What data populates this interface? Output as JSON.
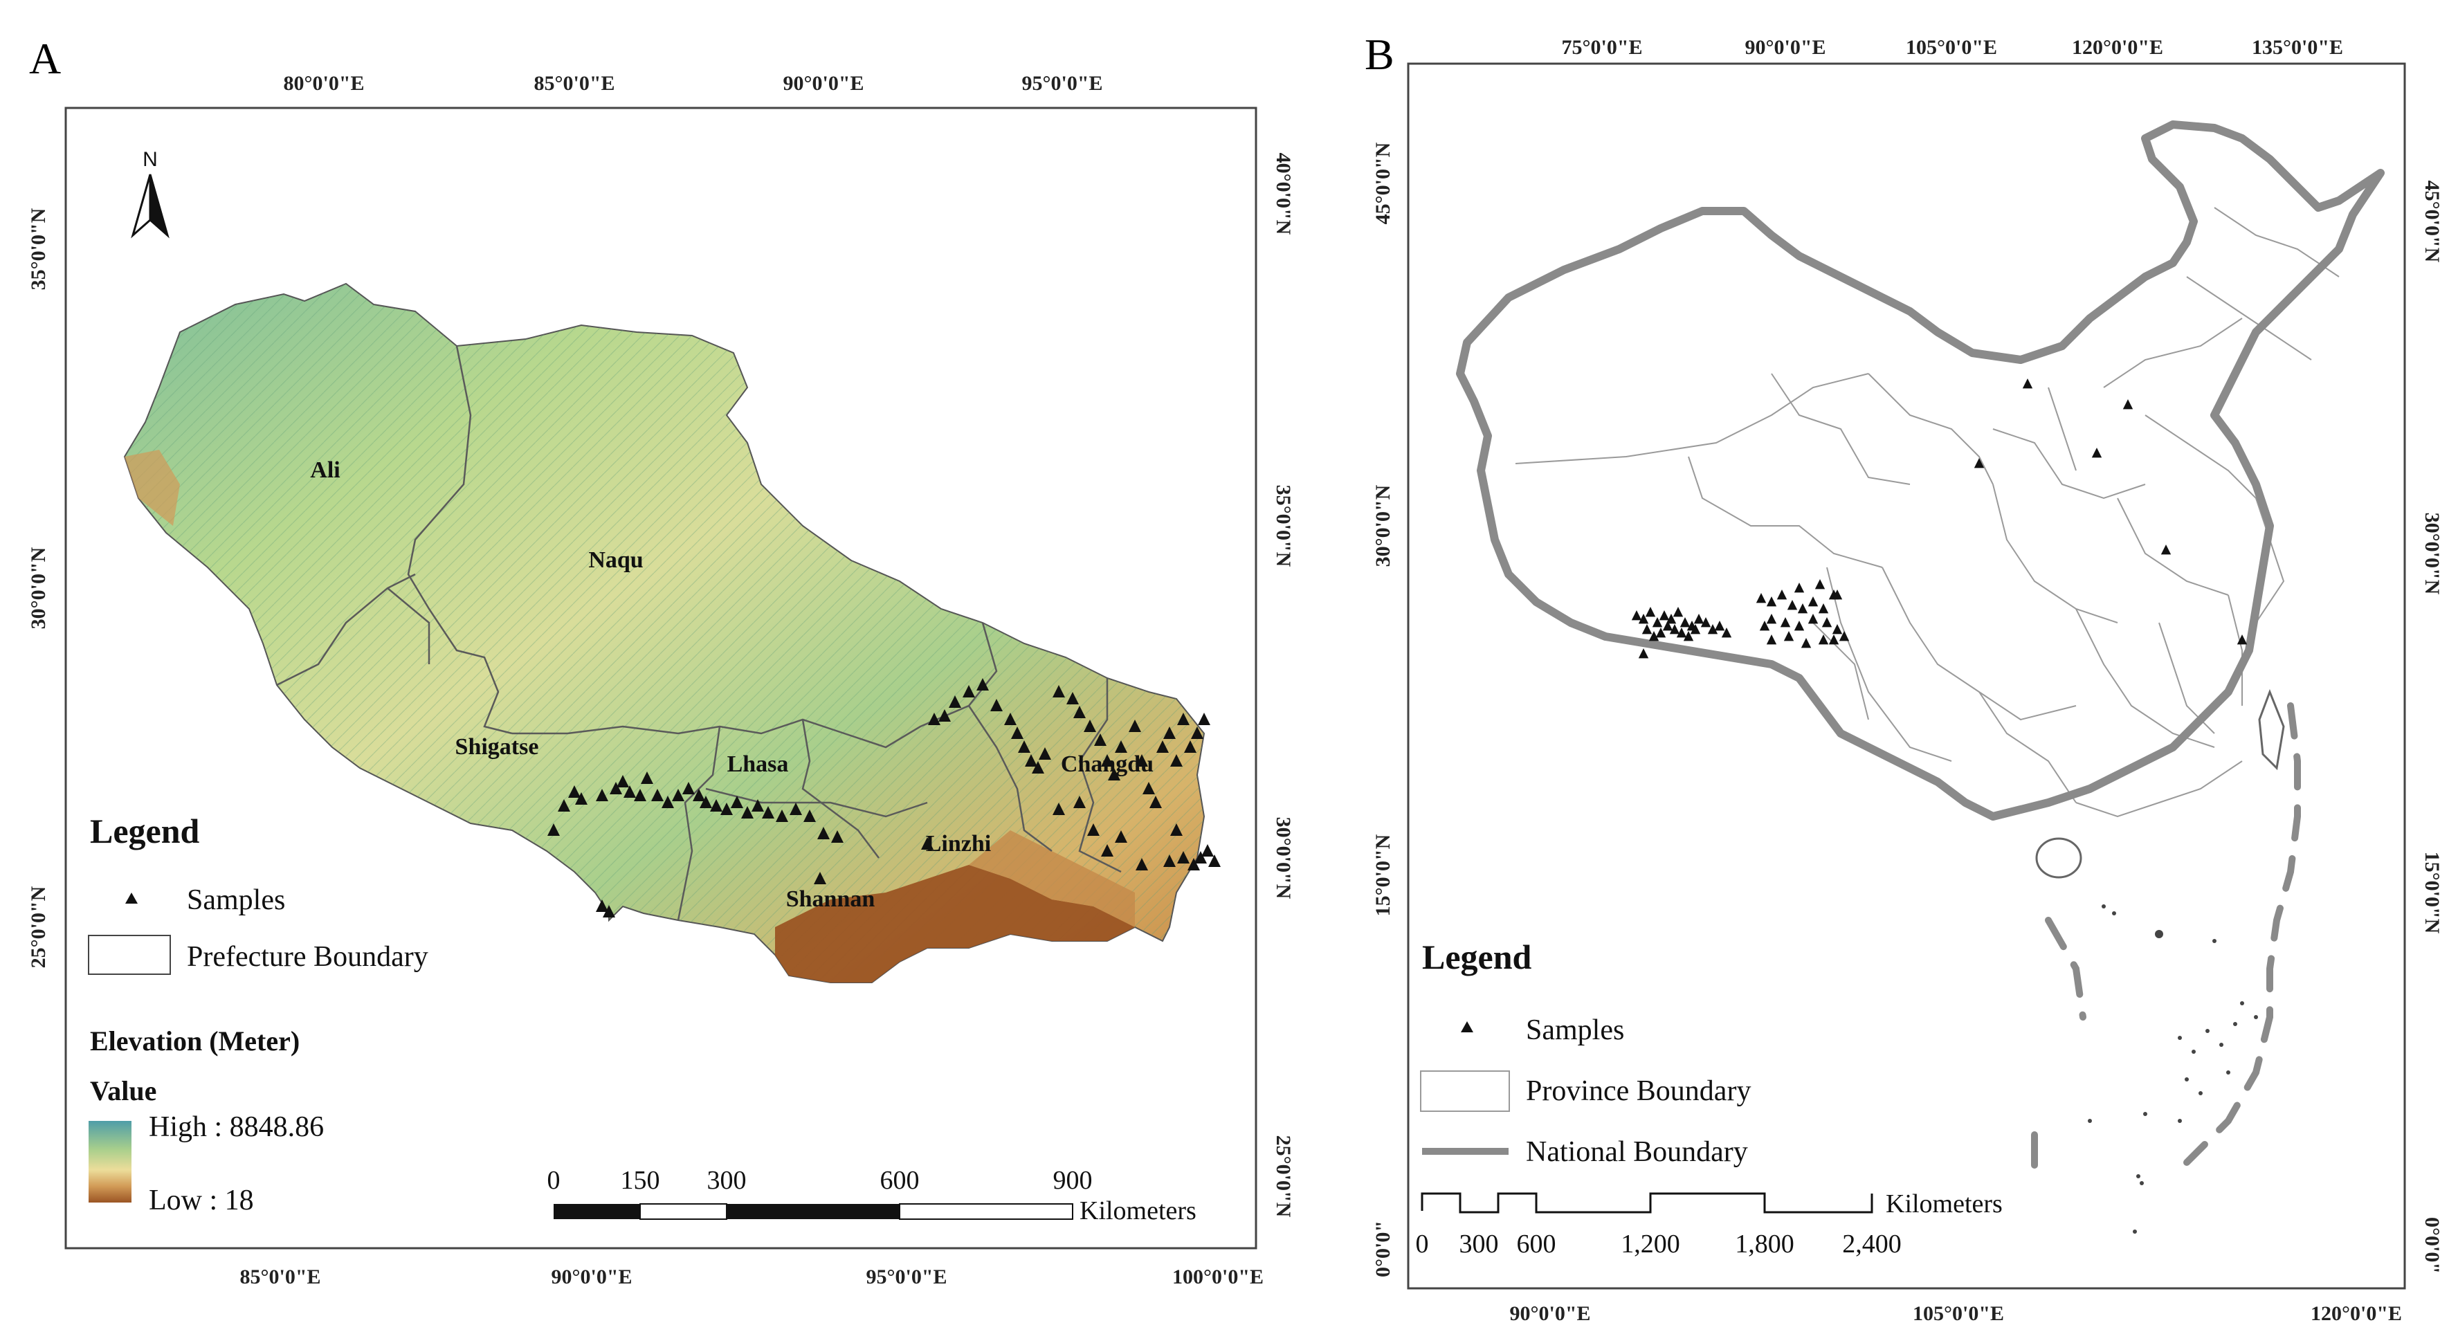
{
  "panel_a": {
    "letter": "A",
    "top_lon_labels": [
      "80°0'0\"E",
      "85°0'0\"E",
      "90°0'0\"E",
      "95°0'0\"E"
    ],
    "bottom_lon_labels": [
      "85°0'0\"E",
      "90°0'0\"E",
      "95°0'0\"E",
      "100°0'0\"E"
    ],
    "left_lat_labels": [
      "35°0'0\"N",
      "30°0'0\"N",
      "25°0'0\"N"
    ],
    "right_lat_labels": [
      "40°0'0\"N",
      "35°0'0\"N",
      "30°0'0\"N",
      "25°0'0\"N"
    ],
    "north_label": "N",
    "regions": [
      "Ali",
      "Naqu",
      "Shigatse",
      "Lhasa",
      "Changdu",
      "Linzhi",
      "Shannan"
    ],
    "legend": {
      "title": "Legend",
      "samples": "Samples",
      "boundary": "Prefecture Boundary",
      "elevation_title": "Elevation (Meter)",
      "value_label": "Value",
      "high": "High : 8848.86",
      "low": "Low : 18"
    },
    "scale": {
      "ticks": [
        "0",
        "150",
        "300",
        "600",
        "900"
      ],
      "unit": "Kilometers"
    }
  },
  "panel_b": {
    "letter": "B",
    "top_lon_labels": [
      "75°0'0\"E",
      "90°0'0\"E",
      "105°0'0\"E",
      "120°0'0\"E",
      "135°0'0\"E"
    ],
    "bottom_lon_labels": [
      "90°0'0\"E",
      "105°0'0\"E",
      "120°0'0\"E"
    ],
    "left_lat_labels": [
      "45°0'0\"N",
      "30°0'0\"N",
      "15°0'0\"N",
      "0°0'0\""
    ],
    "right_lat_labels": [
      "45°0'0\"N",
      "30°0'0\"N",
      "15°0'0\"N",
      "0°0'0\""
    ],
    "legend": {
      "title": "Legend",
      "samples": "Samples",
      "province": "Province Boundary",
      "national": "National Boundary"
    },
    "scale": {
      "ticks": [
        "0",
        "300",
        "600",
        "1,200",
        "1,800",
        "2,400"
      ],
      "unit": "Kilometers"
    }
  },
  "colors": {
    "elev_high": "#4f9da8",
    "elev_mid_green": "#a9cf8c",
    "elev_mid_yellow": "#ecdd9a",
    "elev_low": "#9b5524",
    "national_boundary": "#8a8a8a",
    "province_boundary": "#9a9a9a"
  }
}
